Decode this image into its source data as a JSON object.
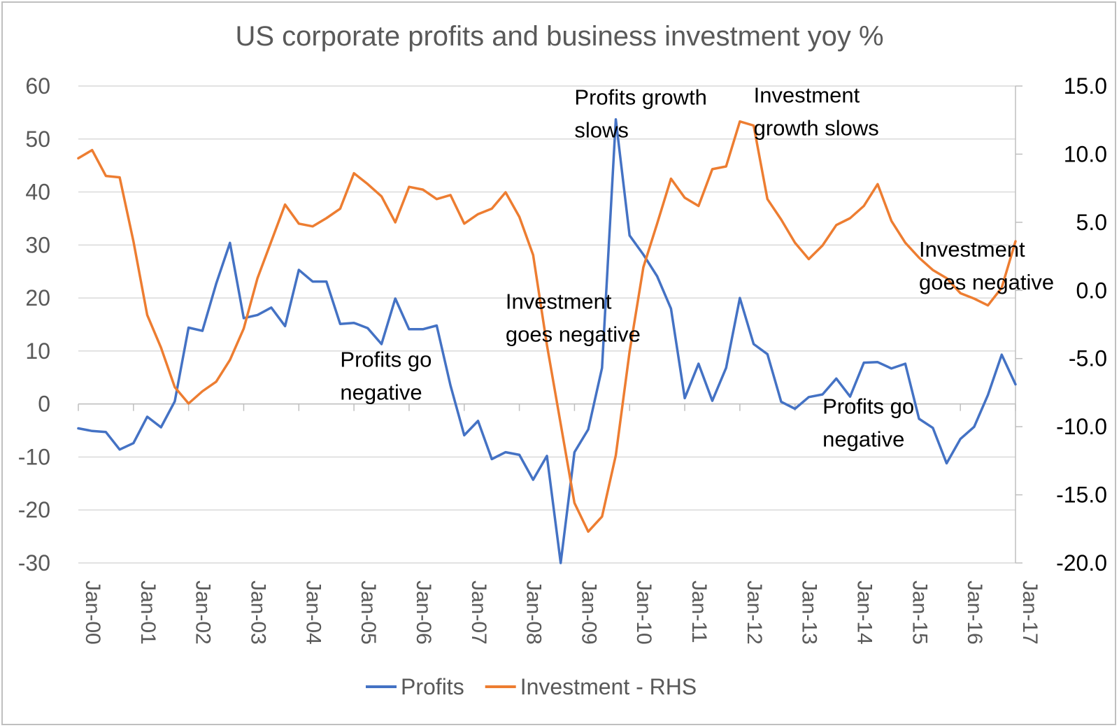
{
  "chart_data": {
    "type": "line",
    "title": "US corporate profits and business investment yoy %",
    "x": [
      "Jan-00",
      "Apr-00",
      "Jul-00",
      "Oct-00",
      "Jan-01",
      "Apr-01",
      "Jul-01",
      "Oct-01",
      "Jan-02",
      "Apr-02",
      "Jul-02",
      "Oct-02",
      "Jan-03",
      "Apr-03",
      "Jul-03",
      "Oct-03",
      "Jan-04",
      "Apr-04",
      "Jul-04",
      "Oct-04",
      "Jan-05",
      "Apr-05",
      "Jul-05",
      "Oct-05",
      "Jan-06",
      "Apr-06",
      "Jul-06",
      "Oct-06",
      "Jan-07",
      "Apr-07",
      "Jul-07",
      "Oct-07",
      "Jan-08",
      "Apr-08",
      "Jul-08",
      "Oct-08",
      "Jan-09",
      "Apr-09",
      "Jul-09",
      "Oct-09",
      "Jan-10",
      "Apr-10",
      "Jul-10",
      "Oct-10",
      "Jan-11",
      "Apr-11",
      "Jul-11",
      "Oct-11",
      "Jan-12",
      "Apr-12",
      "Jul-12",
      "Oct-12",
      "Jan-13",
      "Apr-13",
      "Jul-13",
      "Oct-13",
      "Jan-14",
      "Apr-14",
      "Jul-14",
      "Oct-14",
      "Jan-15",
      "Apr-15",
      "Jul-15",
      "Oct-15",
      "Jan-16",
      "Apr-16",
      "Jul-16",
      "Oct-16",
      "Jan-17"
    ],
    "x_tick_labels": [
      "Jan-00",
      "Jan-01",
      "Jan-02",
      "Jan-03",
      "Jan-04",
      "Jan-05",
      "Jan-06",
      "Jan-07",
      "Jan-08",
      "Jan-09",
      "Jan-10",
      "Jan-11",
      "Jan-12",
      "Jan-13",
      "Jan-14",
      "Jan-15",
      "Jan-16",
      "Jan-17"
    ],
    "y_left": {
      "ylim": [
        -30,
        60
      ],
      "ticks": [
        "60",
        "50",
        "40",
        "30",
        "20",
        "10",
        "0",
        "-10",
        "-20",
        "-30"
      ]
    },
    "y_right": {
      "ylim": [
        -20,
        15
      ],
      "ticks": [
        "15.0",
        "10.0",
        "5.0",
        "0.0",
        "-5.0",
        "-10.0",
        "-15.0",
        "-20.0"
      ]
    },
    "grid": true,
    "legend_position": "bottom",
    "series": [
      {
        "name": "Profits",
        "axis": "left",
        "color": "#4472c4",
        "values": [
          -4.6,
          -5.1,
          -5.3,
          -8.6,
          -7.4,
          -2.4,
          -4.4,
          0.5,
          14.4,
          13.8,
          22.7,
          30.4,
          16.2,
          16.8,
          18.2,
          14.7,
          25.3,
          23.1,
          23.1,
          15.1,
          15.3,
          14.3,
          11.3,
          19.9,
          14.1,
          14.1,
          14.8,
          3.5,
          -5.9,
          -3.2,
          -10.4,
          -9.1,
          -9.6,
          -14.3,
          -9.8,
          -30.0,
          -9.1,
          -4.8,
          6.8,
          53.7,
          31.8,
          28.2,
          24.1,
          18.0,
          1.1,
          7.6,
          0.6,
          6.8,
          20.0,
          11.3,
          9.4,
          0.4,
          -0.9,
          1.3,
          1.8,
          4.8,
          1.4,
          7.8,
          7.9,
          6.7,
          7.6,
          -2.8,
          -4.5,
          -11.2,
          -6.6,
          -4.3,
          1.7,
          9.3,
          3.7
        ]
      },
      {
        "name": "Investment - RHS",
        "axis": "right",
        "color": "#ed7d31",
        "values": [
          9.7,
          10.3,
          8.4,
          8.3,
          3.6,
          -1.8,
          -4.2,
          -7.1,
          -8.3,
          -7.4,
          -6.7,
          -5.1,
          -2.8,
          0.9,
          3.6,
          6.3,
          4.9,
          4.7,
          5.3,
          6.0,
          8.6,
          7.8,
          6.9,
          5.0,
          7.6,
          7.4,
          6.7,
          7.0,
          4.9,
          5.6,
          6.0,
          7.2,
          5.4,
          2.6,
          -4.0,
          -9.8,
          -15.6,
          -17.7,
          -16.6,
          -12.1,
          -4.5,
          1.7,
          4.9,
          8.2,
          6.8,
          6.2,
          8.9,
          9.1,
          12.4,
          12.1,
          6.7,
          5.2,
          3.5,
          2.3,
          3.3,
          4.8,
          5.3,
          6.2,
          7.8,
          5.1,
          3.5,
          2.4,
          1.5,
          0.9,
          -0.2,
          -0.6,
          -1.1,
          0.2,
          3.6
        ]
      }
    ],
    "annotations": [
      {
        "lines": [
          "Profits go",
          "negative"
        ],
        "x": "Oct-04",
        "y_left": 7.0
      },
      {
        "lines": [
          "Investment",
          "goes negative"
        ],
        "x": "Oct-07",
        "y_left": 18.0
      },
      {
        "lines": [
          "Profits growth",
          "slows"
        ],
        "x": "Jan-09",
        "y_left": 56.5
      },
      {
        "lines": [
          "Investment",
          "growth slows"
        ],
        "x": "Apr-12",
        "y_left": 56.9
      },
      {
        "lines": [
          "Profits go",
          "negative"
        ],
        "x": "Jul-13",
        "y_left": -1.8
      },
      {
        "lines": [
          "Investment",
          "goes negative"
        ],
        "x": "Apr-15",
        "y_left": 27.8
      }
    ]
  },
  "legend": [
    {
      "label": "Profits",
      "color": "#4472c4"
    },
    {
      "label": "Investment - RHS",
      "color": "#ed7d31"
    }
  ]
}
